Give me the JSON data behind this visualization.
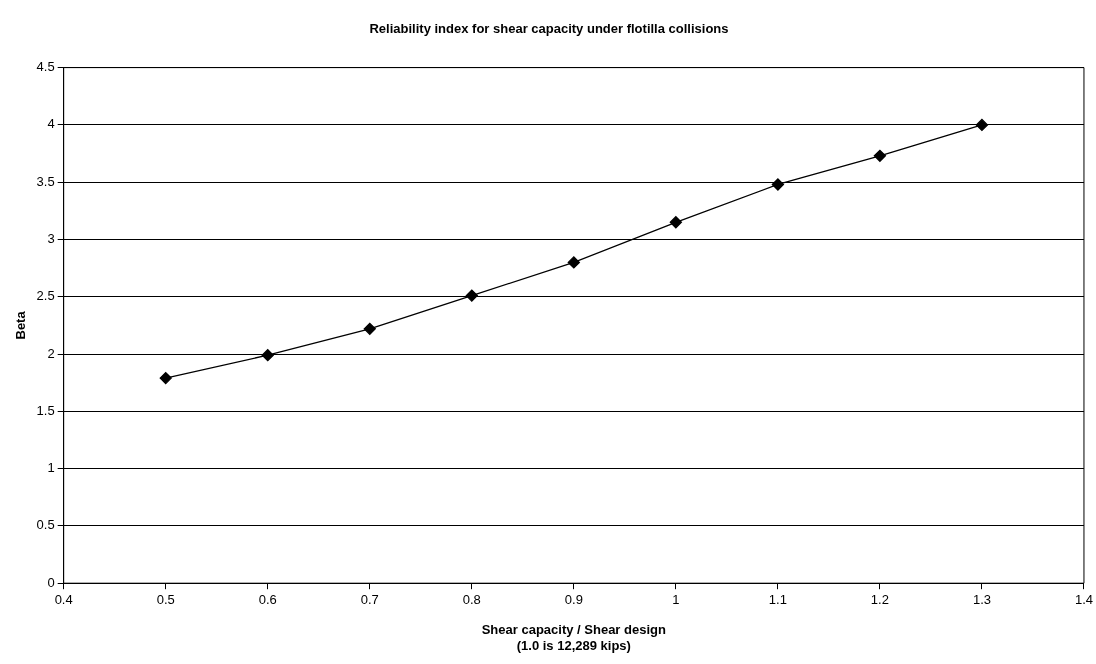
{
  "chart_data": {
    "type": "line",
    "title": "Reliability index for shear capacity under flotilla collisions",
    "xlabel": "Shear capacity / Shear design\n(1.0 is 12,289 kips)",
    "ylabel": "Beta",
    "x": [
      0.5,
      0.6,
      0.7,
      0.8,
      0.9,
      1.0,
      1.1,
      1.2,
      1.3
    ],
    "series": [
      {
        "color": "#000000",
        "values": [
          1.79,
          1.99,
          2.22,
          2.51,
          2.8,
          3.15,
          3.48,
          3.73,
          4.0
        ]
      }
    ],
    "xlim": [
      0.4,
      1.4
    ],
    "xticks": [
      0.4,
      0.5,
      0.6,
      0.7,
      0.8,
      0.9,
      1,
      1.1,
      1.2,
      1.3,
      1.4
    ],
    "ylim": [
      0,
      4.5
    ],
    "yticks": [
      0,
      0.5,
      1,
      1.5,
      2,
      2.5,
      3,
      3.5,
      4,
      4.5
    ],
    "grid": "y",
    "legend": false,
    "marker": "diamond",
    "line_style": "solid"
  }
}
